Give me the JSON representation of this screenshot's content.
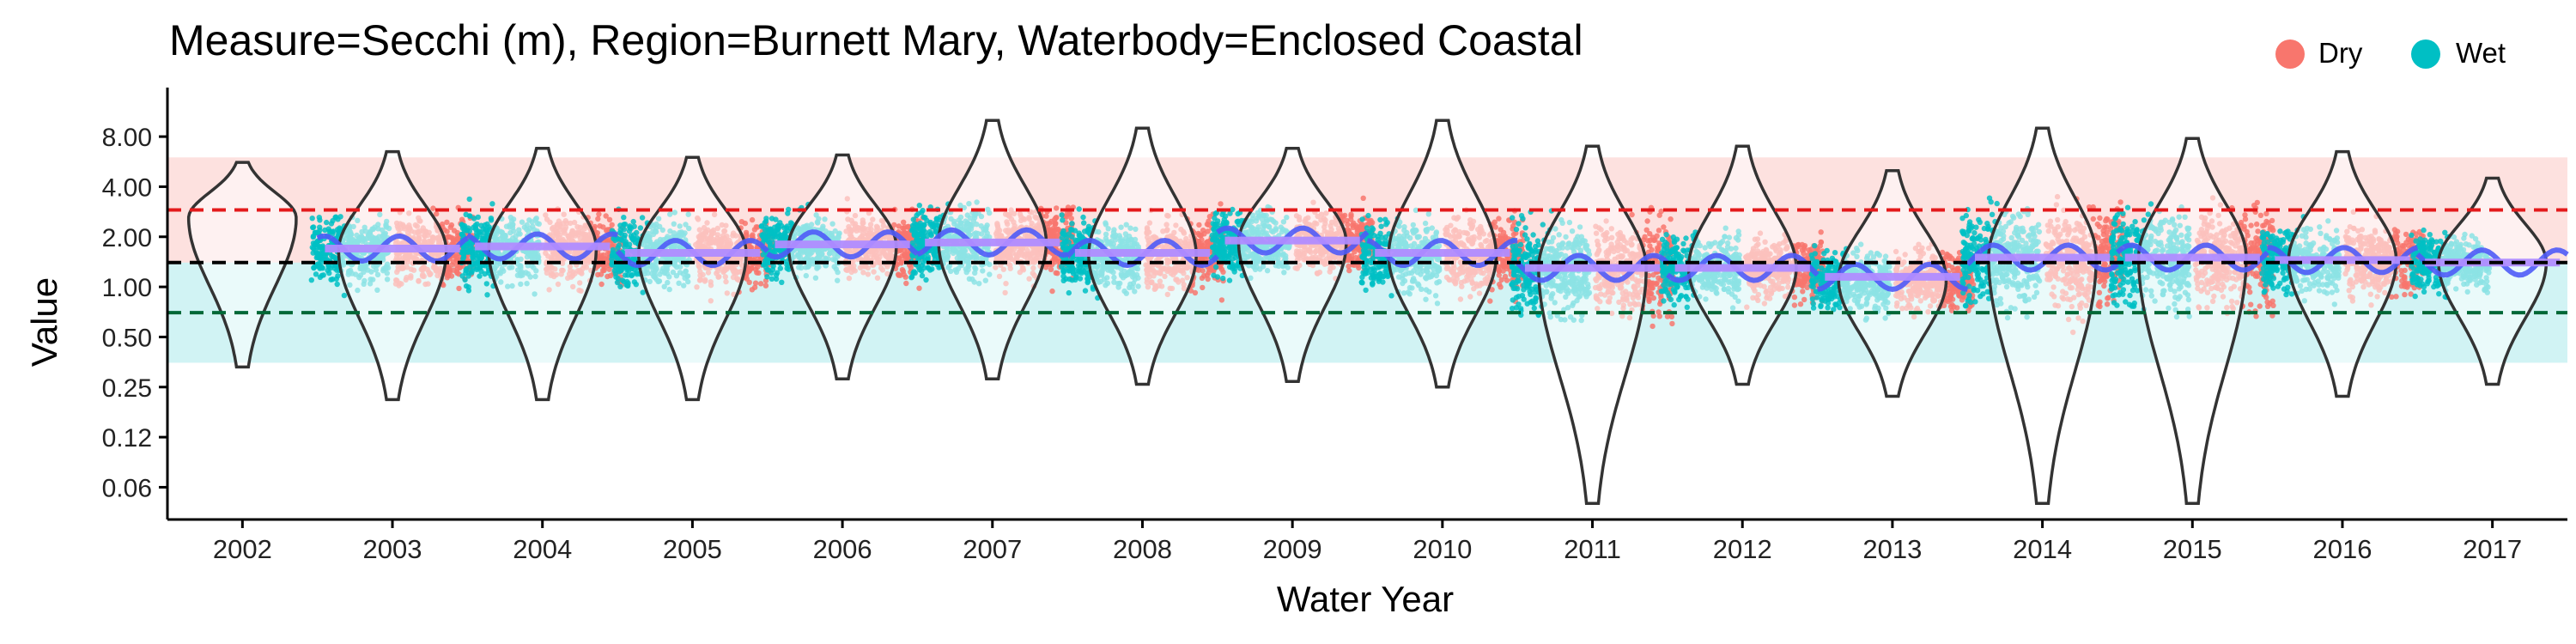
{
  "chart_data": {
    "type": "scatter",
    "title": "Measure=Secchi (m), Region=Burnett Mary, Waterbody=Enclosed Coastal",
    "xlabel": "Water Year",
    "ylabel": "Value",
    "y_scale": "log2",
    "ylim": [
      0.04,
      14.0
    ],
    "y_ticks": [
      {
        "value": 0.0625,
        "label": "0.06"
      },
      {
        "value": 0.125,
        "label": "0.12"
      },
      {
        "value": 0.25,
        "label": "0.25"
      },
      {
        "value": 0.5,
        "label": "0.50"
      },
      {
        "value": 1,
        "label": "1.00"
      },
      {
        "value": 2,
        "label": "2.00"
      },
      {
        "value": 4,
        "label": "4.00"
      },
      {
        "value": 8,
        "label": "8.00"
      }
    ],
    "categories": [
      "2002",
      "2003",
      "2004",
      "2005",
      "2006",
      "2007",
      "2008",
      "2009",
      "2010",
      "2011",
      "2012",
      "2013",
      "2014",
      "2015",
      "2016",
      "2017"
    ],
    "legend": {
      "position": "top-right",
      "entries": [
        {
          "name": "Dry",
          "color": "#F8766D"
        },
        {
          "name": "Wet",
          "color": "#00BFC4"
        }
      ]
    },
    "reference_lines": [
      {
        "value": 2.9,
        "color": "#E41A1C",
        "style": "dashed"
      },
      {
        "value": 1.4,
        "color": "#000000",
        "style": "dashed"
      },
      {
        "value": 0.7,
        "color": "#006837",
        "style": "dashed"
      }
    ],
    "bands": [
      {
        "from": 1.4,
        "to": 6.0,
        "color": "#F8766D",
        "opacity": 0.22
      },
      {
        "from": 0.35,
        "to": 1.4,
        "color": "#00BFC4",
        "opacity": 0.18
      }
    ],
    "years": [
      {
        "year": "2002",
        "median": 2.6,
        "min": 0.33,
        "max": 5.6,
        "mean": 2.5,
        "dry": 0,
        "wet": 0
      },
      {
        "year": "2003",
        "median": 1.65,
        "min": 0.21,
        "max": 6.5,
        "mean": 1.7,
        "dry": 1,
        "wet": 1
      },
      {
        "year": "2004",
        "median": 1.7,
        "min": 0.21,
        "max": 6.8,
        "mean": 1.75,
        "dry": 1,
        "wet": 1
      },
      {
        "year": "2005",
        "median": 1.6,
        "min": 0.21,
        "max": 6.0,
        "mean": 1.6,
        "dry": 1,
        "wet": 1
      },
      {
        "year": "2006",
        "median": 1.75,
        "min": 0.28,
        "max": 6.2,
        "mean": 1.8,
        "dry": 1,
        "wet": 1
      },
      {
        "year": "2007",
        "median": 1.85,
        "min": 0.28,
        "max": 10.0,
        "mean": 1.85,
        "dry": 1,
        "wet": 1
      },
      {
        "year": "2008",
        "median": 1.55,
        "min": 0.26,
        "max": 9.0,
        "mean": 1.6,
        "dry": 1,
        "wet": 1
      },
      {
        "year": "2009",
        "median": 1.85,
        "min": 0.27,
        "max": 6.8,
        "mean": 1.9,
        "dry": 1,
        "wet": 1
      },
      {
        "year": "2010",
        "median": 1.55,
        "min": 0.25,
        "max": 10.0,
        "mean": 1.6,
        "dry": 1,
        "wet": 1
      },
      {
        "year": "2011",
        "median": 1.3,
        "min": 0.05,
        "max": 7.0,
        "mean": 1.3,
        "dry": 1,
        "wet": 1
      },
      {
        "year": "2012",
        "median": 1.3,
        "min": 0.26,
        "max": 7.0,
        "mean": 1.3,
        "dry": 1,
        "wet": 1
      },
      {
        "year": "2013",
        "median": 1.1,
        "min": 0.22,
        "max": 5.0,
        "mean": 1.15,
        "dry": 1,
        "wet": 1
      },
      {
        "year": "2014",
        "median": 1.5,
        "min": 0.05,
        "max": 9.0,
        "mean": 1.5,
        "dry": 1,
        "wet": 1
      },
      {
        "year": "2015",
        "median": 1.5,
        "min": 0.05,
        "max": 7.8,
        "mean": 1.5,
        "dry": 1,
        "wet": 1
      },
      {
        "year": "2016",
        "median": 1.45,
        "min": 0.22,
        "max": 6.5,
        "mean": 1.45,
        "dry": 1,
        "wet": 1
      },
      {
        "year": "2017",
        "median": 1.4,
        "min": 0.26,
        "max": 4.5,
        "mean": 1.4,
        "dry": 0,
        "wet": 1
      }
    ],
    "grid": false
  }
}
